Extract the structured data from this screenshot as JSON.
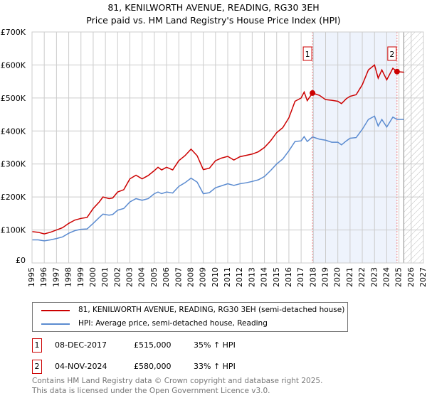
{
  "title": "81, KENILWORTH AVENUE, READING, RG30 3EH",
  "subtitle": "Price paid vs. HM Land Registry's House Price Index (HPI)",
  "chart_data": {
    "type": "line",
    "title": "81, KENILWORTH AVENUE, READING, RG30 3EH",
    "subtitle": "Price paid vs. HM Land Registry's House Price Index (HPI)",
    "xlim": [
      1995,
      2027
    ],
    "ylim": [
      0,
      700000
    ],
    "y_ticks": [
      {
        "v": 0,
        "label": "£0"
      },
      {
        "v": 100000,
        "label": "£100K"
      },
      {
        "v": 200000,
        "label": "£200K"
      },
      {
        "v": 300000,
        "label": "£300K"
      },
      {
        "v": 400000,
        "label": "£400K"
      },
      {
        "v": 500000,
        "label": "£500K"
      },
      {
        "v": 600000,
        "label": "£600K"
      },
      {
        "v": 700000,
        "label": "£700K"
      }
    ],
    "x_ticks": [
      "1995",
      "1996",
      "1997",
      "1998",
      "1999",
      "2000",
      "2001",
      "2002",
      "2003",
      "2004",
      "2005",
      "2006",
      "2007",
      "2008",
      "2009",
      "2010",
      "2011",
      "2012",
      "2013",
      "2014",
      "2015",
      "2016",
      "2017",
      "2018",
      "2019",
      "2020",
      "2021",
      "2022",
      "2023",
      "2024",
      "2025",
      "2026",
      "2027"
    ],
    "grid": true,
    "series": [
      {
        "name": "81, KENILWORTH AVENUE, READING, RG30 3EH (semi-detached house)",
        "color": "#cc0000",
        "x": [
          1995,
          1995.5,
          1996,
          1996.5,
          1997,
          1997.5,
          1998,
          1998.5,
          1999,
          1999.5,
          2000,
          2000.5,
          2000.8,
          2001.3,
          2001.6,
          2002,
          2002.5,
          2003,
          2003.5,
          2004,
          2004.5,
          2005,
          2005.3,
          2005.6,
          2006,
          2006.5,
          2007,
          2007.5,
          2008,
          2008.5,
          2009,
          2009.5,
          2010,
          2010.5,
          2011,
          2011.5,
          2012,
          2012.5,
          2013,
          2013.5,
          2014,
          2014.5,
          2015,
          2015.5,
          2016,
          2016.5,
          2017,
          2017.25,
          2017.5,
          2017.93,
          2018.5,
          2019,
          2019.5,
          2020,
          2020.3,
          2020.7,
          2021,
          2021.5,
          2022,
          2022.5,
          2023,
          2023.3,
          2023.6,
          2024,
          2024.5,
          2024.84,
          2025.4
        ],
        "values": [
          95000,
          93000,
          88000,
          93000,
          100000,
          107000,
          120000,
          130000,
          135000,
          138000,
          165000,
          185000,
          200000,
          195000,
          197000,
          215000,
          222000,
          255000,
          266000,
          255000,
          265000,
          280000,
          290000,
          282000,
          290000,
          282000,
          310000,
          325000,
          345000,
          325000,
          283000,
          287000,
          310000,
          318000,
          323000,
          312000,
          322000,
          326000,
          330000,
          337000,
          350000,
          370000,
          395000,
          410000,
          440000,
          490000,
          500000,
          518000,
          492000,
          515000,
          508000,
          495000,
          493000,
          490000,
          483000,
          498000,
          505000,
          510000,
          540000,
          585000,
          600000,
          560000,
          585000,
          555000,
          590000,
          580000,
          578000
        ]
      },
      {
        "name": "HPI: Average price, semi-detached house, Reading",
        "color": "#5b8bd0",
        "x": [
          1995,
          1995.5,
          1996,
          1996.5,
          1997,
          1997.5,
          1998,
          1998.5,
          1999,
          1999.5,
          2000,
          2000.5,
          2000.8,
          2001.3,
          2001.6,
          2002,
          2002.5,
          2003,
          2003.5,
          2004,
          2004.5,
          2005,
          2005.3,
          2005.6,
          2006,
          2006.5,
          2007,
          2007.5,
          2008,
          2008.5,
          2009,
          2009.5,
          2010,
          2010.5,
          2011,
          2011.5,
          2012,
          2012.5,
          2013,
          2013.5,
          2014,
          2014.5,
          2015,
          2015.5,
          2016,
          2016.5,
          2017,
          2017.25,
          2017.5,
          2017.93,
          2018.5,
          2019,
          2019.5,
          2020,
          2020.3,
          2020.7,
          2021,
          2021.5,
          2022,
          2022.5,
          2023,
          2023.3,
          2023.6,
          2024,
          2024.5,
          2024.84,
          2025.4
        ],
        "values": [
          70000,
          70000,
          67000,
          70000,
          74000,
          79000,
          90000,
          98000,
          102000,
          103000,
          120000,
          138000,
          148000,
          145000,
          147000,
          160000,
          165000,
          185000,
          195000,
          190000,
          195000,
          210000,
          215000,
          210000,
          215000,
          212000,
          232000,
          243000,
          257000,
          245000,
          210000,
          213000,
          228000,
          234000,
          240000,
          235000,
          240000,
          243000,
          247000,
          252000,
          262000,
          280000,
          300000,
          315000,
          340000,
          368000,
          370000,
          383000,
          368000,
          382000,
          375000,
          372000,
          366000,
          366000,
          358000,
          370000,
          378000,
          380000,
          405000,
          435000,
          445000,
          415000,
          435000,
          412000,
          442000,
          435000,
          435000
        ]
      }
    ],
    "sales": [
      {
        "label": "1",
        "x": 2017.93,
        "value": 515000
      },
      {
        "label": "2",
        "x": 2024.84,
        "value": 580000
      }
    ],
    "shaded_range": [
      2017.93,
      2024.84
    ],
    "hatched_from": 2025.4
  },
  "legend": {
    "red": "81, KENILWORTH AVENUE, READING, RG30 3EH (semi-detached house)",
    "blue": "HPI: Average price, semi-detached house, Reading"
  },
  "sales_table": [
    {
      "n": "1",
      "date": "08-DEC-2017",
      "price": "£515,000",
      "hpi": "35% ↑ HPI"
    },
    {
      "n": "2",
      "date": "04-NOV-2024",
      "price": "£580,000",
      "hpi": "33% ↑ HPI"
    }
  ],
  "footer": {
    "line1": "Contains HM Land Registry data © Crown copyright and database right 2025.",
    "line2": "This data is licensed under the Open Government Licence v3.0."
  }
}
